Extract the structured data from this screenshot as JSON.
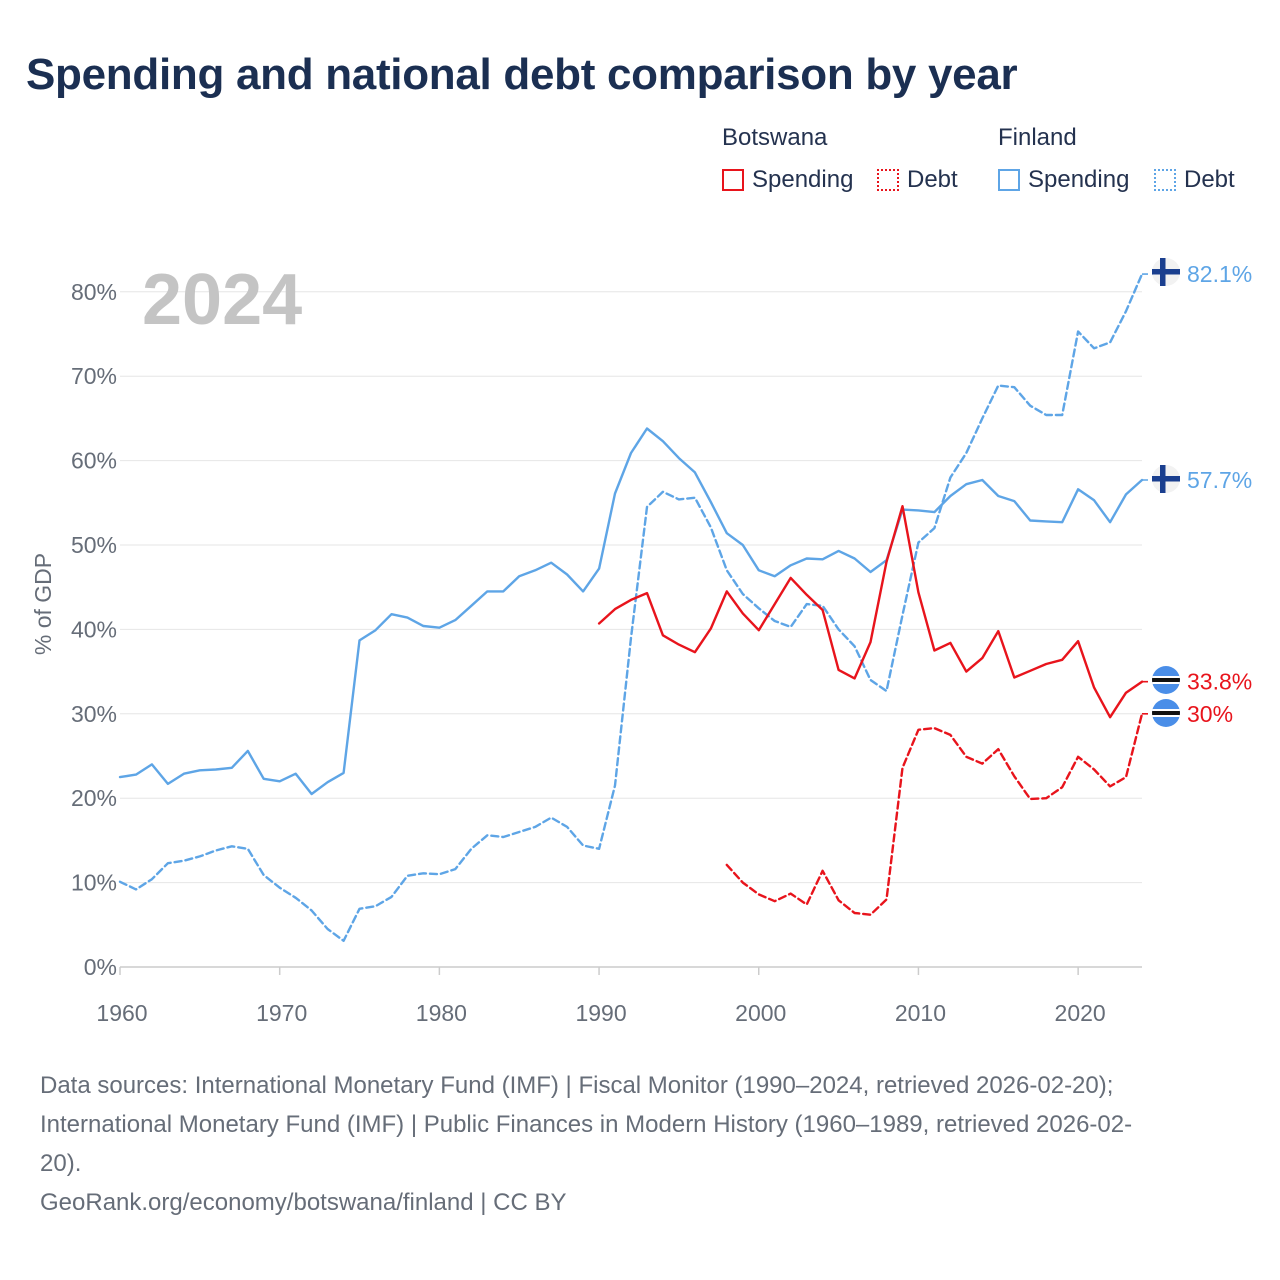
{
  "title": "Spending and national debt comparison by year",
  "legend": {
    "groups": [
      {
        "name": "Botswana",
        "items": [
          {
            "label": "Spending",
            "style": "solid",
            "color": "#e8141c"
          },
          {
            "label": "Debt",
            "style": "dotted",
            "color": "#e8141c"
          }
        ]
      },
      {
        "name": "Finland",
        "items": [
          {
            "label": "Spending",
            "style": "solid",
            "color": "#5ea5e6"
          },
          {
            "label": "Debt",
            "style": "dotted",
            "color": "#5ea5e6"
          }
        ]
      }
    ]
  },
  "colors": {
    "botswana": "#e8141c",
    "finland": "#5ea5e6",
    "grid": "#e6e6e6",
    "axis": "#cccccc",
    "year_watermark": "#c4c4c4"
  },
  "chart_data": {
    "type": "line",
    "year_label": "2024",
    "ylabel": "% of GDP",
    "xlim": [
      1960,
      2025
    ],
    "ylim": [
      0,
      85
    ],
    "x_ticks": [
      1960,
      1970,
      1980,
      1990,
      2000,
      2010,
      2020
    ],
    "y_ticks": [
      0,
      10,
      20,
      30,
      40,
      50,
      60,
      70,
      80
    ],
    "y_tick_suffix": "%",
    "series": [
      {
        "name": "Finland Spending",
        "country": "Finland",
        "metric": "Spending",
        "dashed": false,
        "color": "#5ea5e6",
        "end_label": "57.7%",
        "end_value": 57.7,
        "points": [
          [
            1960,
            22.5
          ],
          [
            1961,
            22.8
          ],
          [
            1962,
            24.0
          ],
          [
            1963,
            21.7
          ],
          [
            1964,
            22.9
          ],
          [
            1965,
            23.3
          ],
          [
            1966,
            23.4
          ],
          [
            1967,
            23.6
          ],
          [
            1968,
            25.6
          ],
          [
            1969,
            22.3
          ],
          [
            1970,
            22.0
          ],
          [
            1971,
            22.9
          ],
          [
            1972,
            20.5
          ],
          [
            1973,
            21.9
          ],
          [
            1974,
            23.0
          ],
          [
            1975,
            38.7
          ],
          [
            1976,
            39.9
          ],
          [
            1977,
            41.8
          ],
          [
            1978,
            41.4
          ],
          [
            1979,
            40.4
          ],
          [
            1980,
            40.2
          ],
          [
            1981,
            41.1
          ],
          [
            1982,
            42.8
          ],
          [
            1983,
            44.5
          ],
          [
            1984,
            44.5
          ],
          [
            1985,
            46.3
          ],
          [
            1986,
            47.0
          ],
          [
            1987,
            47.9
          ],
          [
            1988,
            46.5
          ],
          [
            1989,
            44.5
          ],
          [
            1990,
            47.2
          ],
          [
            1991,
            56.1
          ],
          [
            1992,
            60.9
          ],
          [
            1993,
            63.8
          ],
          [
            1994,
            62.3
          ],
          [
            1995,
            60.3
          ],
          [
            1996,
            58.6
          ],
          [
            1997,
            55.1
          ],
          [
            1998,
            51.4
          ],
          [
            1999,
            50.0
          ],
          [
            2000,
            47.0
          ],
          [
            2001,
            46.3
          ],
          [
            2002,
            47.6
          ],
          [
            2003,
            48.4
          ],
          [
            2004,
            48.3
          ],
          [
            2005,
            49.3
          ],
          [
            2006,
            48.4
          ],
          [
            2007,
            46.8
          ],
          [
            2008,
            48.2
          ],
          [
            2009,
            54.2
          ],
          [
            2010,
            54.1
          ],
          [
            2011,
            53.9
          ],
          [
            2012,
            55.8
          ],
          [
            2013,
            57.2
          ],
          [
            2014,
            57.7
          ],
          [
            2015,
            55.8
          ],
          [
            2016,
            55.2
          ],
          [
            2017,
            52.9
          ],
          [
            2018,
            52.8
          ],
          [
            2019,
            52.7
          ],
          [
            2020,
            56.6
          ],
          [
            2021,
            55.3
          ],
          [
            2022,
            52.7
          ],
          [
            2023,
            56.0
          ],
          [
            2024,
            57.7
          ],
          [
            2025,
            57.7
          ]
        ]
      },
      {
        "name": "Finland Debt",
        "country": "Finland",
        "metric": "Debt",
        "dashed": true,
        "color": "#5ea5e6",
        "end_label": "82.1%",
        "end_value": 82.1,
        "points": [
          [
            1960,
            10.1
          ],
          [
            1961,
            9.2
          ],
          [
            1962,
            10.4
          ],
          [
            1963,
            12.3
          ],
          [
            1964,
            12.6
          ],
          [
            1965,
            13.1
          ],
          [
            1966,
            13.8
          ],
          [
            1967,
            14.3
          ],
          [
            1968,
            14.0
          ],
          [
            1969,
            10.9
          ],
          [
            1970,
            9.4
          ],
          [
            1971,
            8.2
          ],
          [
            1972,
            6.7
          ],
          [
            1973,
            4.5
          ],
          [
            1974,
            3.1
          ],
          [
            1975,
            6.9
          ],
          [
            1976,
            7.2
          ],
          [
            1977,
            8.3
          ],
          [
            1978,
            10.8
          ],
          [
            1979,
            11.1
          ],
          [
            1980,
            11.0
          ],
          [
            1981,
            11.6
          ],
          [
            1982,
            14.0
          ],
          [
            1983,
            15.6
          ],
          [
            1984,
            15.4
          ],
          [
            1985,
            16.0
          ],
          [
            1986,
            16.6
          ],
          [
            1987,
            17.7
          ],
          [
            1988,
            16.6
          ],
          [
            1989,
            14.4
          ],
          [
            1990,
            14.0
          ],
          [
            1991,
            21.5
          ],
          [
            1992,
            39.0
          ],
          [
            1993,
            54.5
          ],
          [
            1994,
            56.3
          ],
          [
            1995,
            55.4
          ],
          [
            1996,
            55.6
          ],
          [
            1997,
            52.1
          ],
          [
            1998,
            47.0
          ],
          [
            1999,
            44.2
          ],
          [
            2000,
            42.5
          ],
          [
            2001,
            41.0
          ],
          [
            2002,
            40.3
          ],
          [
            2003,
            43.0
          ],
          [
            2004,
            42.8
          ],
          [
            2005,
            40.0
          ],
          [
            2006,
            38.0
          ],
          [
            2007,
            34.0
          ],
          [
            2008,
            32.7
          ],
          [
            2009,
            41.7
          ],
          [
            2010,
            50.3
          ],
          [
            2011,
            52.0
          ],
          [
            2012,
            58.0
          ],
          [
            2013,
            60.9
          ],
          [
            2014,
            65.0
          ],
          [
            2015,
            68.9
          ],
          [
            2016,
            68.7
          ],
          [
            2017,
            66.5
          ],
          [
            2018,
            65.4
          ],
          [
            2019,
            65.4
          ],
          [
            2020,
            75.3
          ],
          [
            2021,
            73.3
          ],
          [
            2022,
            74.0
          ],
          [
            2023,
            77.7
          ],
          [
            2024,
            82.1
          ],
          [
            2025,
            82.1
          ]
        ]
      },
      {
        "name": "Botswana Spending",
        "country": "Botswana",
        "metric": "Spending",
        "dashed": false,
        "color": "#e8141c",
        "end_label": "33.8%",
        "end_value": 33.8,
        "points": [
          [
            1990,
            40.7
          ],
          [
            1991,
            42.4
          ],
          [
            1992,
            43.5
          ],
          [
            1993,
            44.3
          ],
          [
            1994,
            39.3
          ],
          [
            1995,
            38.2
          ],
          [
            1996,
            37.3
          ],
          [
            1997,
            40.1
          ],
          [
            1998,
            44.5
          ],
          [
            1999,
            41.9
          ],
          [
            2000,
            39.9
          ],
          [
            2001,
            43.0
          ],
          [
            2002,
            46.1
          ],
          [
            2003,
            44.1
          ],
          [
            2004,
            42.3
          ],
          [
            2005,
            35.2
          ],
          [
            2006,
            34.2
          ],
          [
            2007,
            38.5
          ],
          [
            2008,
            48.0
          ],
          [
            2009,
            54.6
          ],
          [
            2010,
            44.4
          ],
          [
            2011,
            37.5
          ],
          [
            2012,
            38.4
          ],
          [
            2013,
            35.0
          ],
          [
            2014,
            36.6
          ],
          [
            2015,
            39.8
          ],
          [
            2016,
            34.3
          ],
          [
            2017,
            35.1
          ],
          [
            2018,
            35.9
          ],
          [
            2019,
            36.4
          ],
          [
            2020,
            38.6
          ],
          [
            2021,
            33.1
          ],
          [
            2022,
            29.6
          ],
          [
            2023,
            32.5
          ],
          [
            2024,
            33.8
          ],
          [
            2025,
            33.8
          ]
        ]
      },
      {
        "name": "Botswana Debt",
        "country": "Botswana",
        "metric": "Debt",
        "dashed": true,
        "color": "#e8141c",
        "end_label": "30%",
        "end_value": 30.0,
        "points": [
          [
            1998,
            12.1
          ],
          [
            1999,
            10.0
          ],
          [
            2000,
            8.6
          ],
          [
            2001,
            7.8
          ],
          [
            2002,
            8.7
          ],
          [
            2003,
            7.4
          ],
          [
            2004,
            11.4
          ],
          [
            2005,
            7.9
          ],
          [
            2006,
            6.4
          ],
          [
            2007,
            6.2
          ],
          [
            2008,
            8.0
          ],
          [
            2009,
            23.6
          ],
          [
            2010,
            28.1
          ],
          [
            2011,
            28.3
          ],
          [
            2012,
            27.5
          ],
          [
            2013,
            24.9
          ],
          [
            2014,
            24.1
          ],
          [
            2015,
            25.8
          ],
          [
            2016,
            22.6
          ],
          [
            2017,
            19.9
          ],
          [
            2018,
            20.0
          ],
          [
            2019,
            21.3
          ],
          [
            2020,
            24.9
          ],
          [
            2021,
            23.4
          ],
          [
            2022,
            21.4
          ],
          [
            2023,
            22.5
          ],
          [
            2024,
            30.0
          ],
          [
            2025,
            30.0
          ]
        ]
      }
    ]
  },
  "footer": {
    "sources_line1": "Data sources: International Monetary Fund (IMF) | Fiscal Monitor (1990–2024, retrieved 2026-02-20);",
    "sources_line2": "International Monetary Fund (IMF) | Public Finances in Modern History (1960–1989, retrieved 2026-02-",
    "sources_line3": "20).",
    "credit": "GeoRank.org/economy/botswana/finland | CC BY"
  }
}
